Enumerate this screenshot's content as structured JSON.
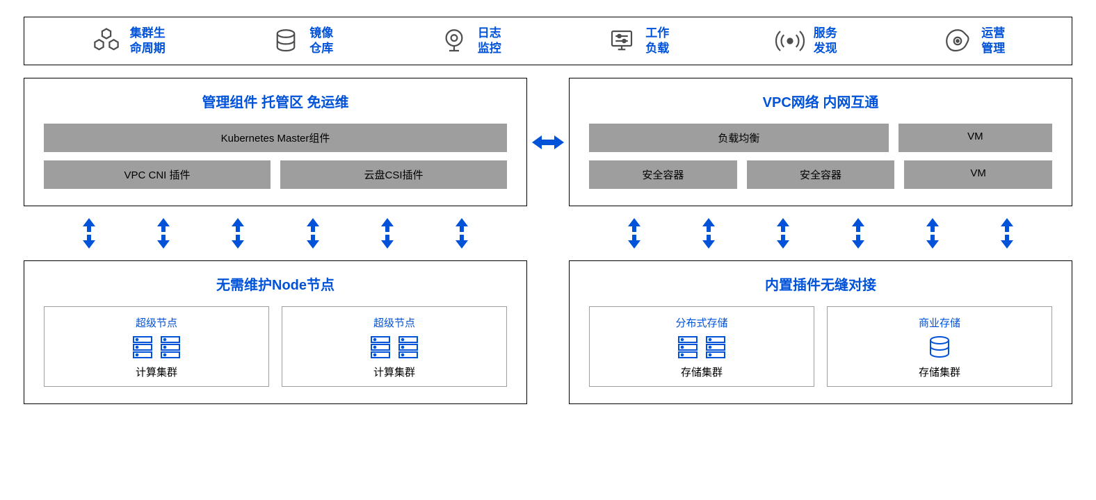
{
  "colors": {
    "accent": "#0052d9",
    "icon_grey": "#4d4d4d",
    "grey_box": "#9e9e9e",
    "border": "#000000",
    "card_border": "#9e9e9e",
    "bg": "#ffffff"
  },
  "top": {
    "items": [
      {
        "label": "集群生\n命周期",
        "icon": "hex-cluster"
      },
      {
        "label": "镜像\n仓库",
        "icon": "database"
      },
      {
        "label": "日志\n监控",
        "icon": "webcam"
      },
      {
        "label": "工作\n负载",
        "icon": "sliders"
      },
      {
        "label": "服务\n发现",
        "icon": "radar"
      },
      {
        "label": "运营\n管理",
        "icon": "gear-blob"
      }
    ]
  },
  "left_top": {
    "title": "管理组件  托管区  免运维",
    "rows": [
      [
        "Kubernetes Master组件"
      ],
      [
        "VPC CNI 插件",
        "云盘CSI插件"
      ]
    ]
  },
  "right_top": {
    "title": "VPC网络 内网互通",
    "rows": [
      [
        "负载均衡",
        "VM"
      ],
      [
        "安全容器",
        "安全容器",
        "VM"
      ]
    ],
    "row0_widths": [
      2,
      1
    ],
    "row1_widths": [
      1,
      1,
      1
    ]
  },
  "left_bottom": {
    "title": "无需维护Node节点",
    "cards": [
      {
        "title": "超级节点",
        "icon": "server-pair",
        "footer": "计算集群"
      },
      {
        "title": "超级节点",
        "icon": "server-pair",
        "footer": "计算集群"
      }
    ]
  },
  "right_bottom": {
    "title": "内置插件无缝对接",
    "cards": [
      {
        "title": "分布式存储",
        "icon": "server-pair",
        "footer": "存储集群"
      },
      {
        "title": "商业存储",
        "icon": "cylinder",
        "footer": "存储集群"
      }
    ]
  },
  "arrows": {
    "vertical_count": 6,
    "color": "#0052d9"
  }
}
